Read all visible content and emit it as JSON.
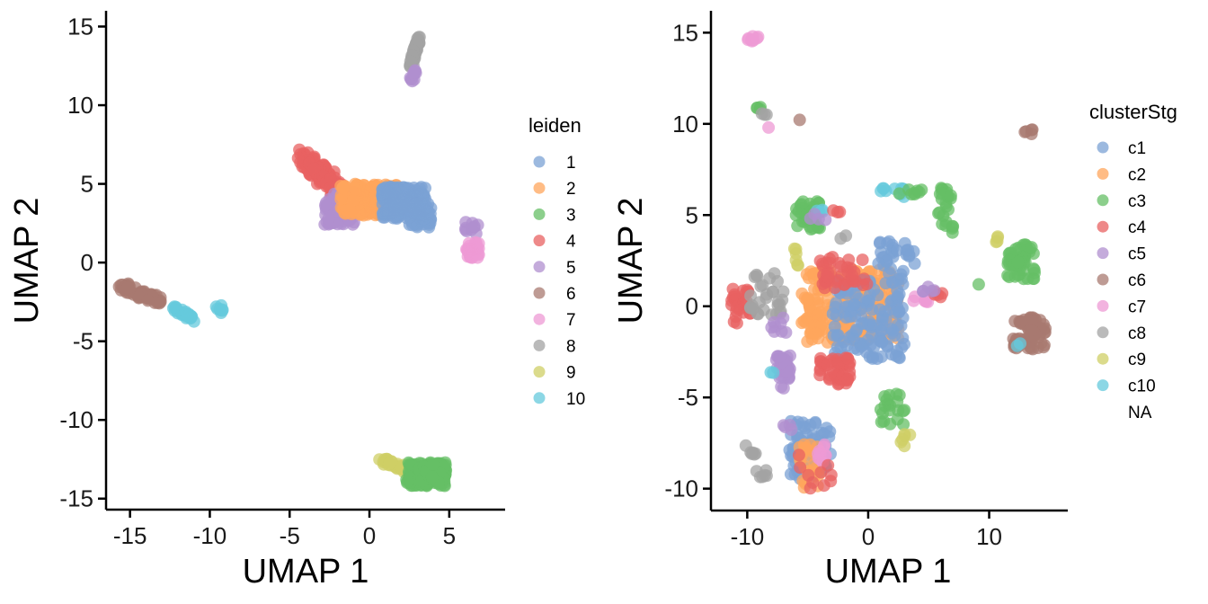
{
  "palette": {
    "1": "#7ba1d4",
    "2": "#ffa55c",
    "3": "#66bf66",
    "4": "#e86161",
    "5": "#b08fcf",
    "6": "#a87a70",
    "7": "#ee9ad4",
    "8": "#a3a3a3",
    "9": "#cfcf66",
    "10": "#66c9dc"
  },
  "chart_data": [
    {
      "type": "scatter",
      "xlabel": "UMAP 1",
      "ylabel": "UMAP 2",
      "xlim": [
        -16.5,
        8.5
      ],
      "ylim": [
        -15.7,
        16
      ],
      "x_ticks": [
        -15,
        -10,
        -5,
        0,
        5
      ],
      "y_ticks": [
        -15,
        -10,
        -5,
        0,
        5,
        10,
        15
      ],
      "grid": false,
      "legend": {
        "title": "leiden",
        "position": "right",
        "entries": [
          {
            "label": "1",
            "key": "1"
          },
          {
            "label": "2",
            "key": "2"
          },
          {
            "label": "3",
            "key": "3"
          },
          {
            "label": "4",
            "key": "4"
          },
          {
            "label": "5",
            "key": "5"
          },
          {
            "label": "6",
            "key": "6"
          },
          {
            "label": "7",
            "key": "7"
          },
          {
            "label": "8",
            "key": "8"
          },
          {
            "label": "9",
            "key": "9"
          },
          {
            "label": "10",
            "key": "10"
          }
        ]
      },
      "clusters": [
        {
          "key": "8",
          "x": [
            2.6,
            3.1
          ],
          "y": [
            12.5,
            14.3
          ],
          "n": 55,
          "shape": "line"
        },
        {
          "key": "5",
          "x": [
            2.5,
            3.0
          ],
          "y": [
            11.3,
            12.4
          ],
          "n": 10,
          "shape": "line"
        },
        {
          "key": "4",
          "x": [
            -4.0,
            -1.3
          ],
          "y": [
            6.7,
            3.8
          ],
          "n": 180,
          "shape": "band",
          "spread": 0.5
        },
        {
          "key": "5",
          "x": [
            -2.8,
            -0.8
          ],
          "y": [
            2.4,
            4.5
          ],
          "n": 70,
          "shape": "box"
        },
        {
          "key": "2",
          "x": [
            -1.8,
            1.8
          ],
          "y": [
            3.0,
            5.0
          ],
          "n": 180,
          "shape": "box"
        },
        {
          "key": "1",
          "x": [
            0.8,
            3.5
          ],
          "y": [
            2.8,
            4.8
          ],
          "n": 200,
          "shape": "box"
        },
        {
          "key": "1",
          "x": [
            2.5,
            3.9
          ],
          "y": [
            2.2,
            3.8
          ],
          "n": 50,
          "shape": "box"
        },
        {
          "key": "5",
          "x": [
            6.0,
            6.8
          ],
          "y": [
            1.8,
            2.6
          ],
          "n": 10,
          "shape": "box"
        },
        {
          "key": "7",
          "x": [
            6.0,
            6.9
          ],
          "y": [
            0.3,
            1.3
          ],
          "n": 30,
          "shape": "box"
        },
        {
          "key": "6",
          "x": [
            -15.5,
            -13.0
          ],
          "y": [
            -1.5,
            -2.5
          ],
          "n": 70,
          "shape": "band",
          "spread": 0.25
        },
        {
          "key": "10",
          "x": [
            -12.3,
            -11.0
          ],
          "y": [
            -2.9,
            -3.6
          ],
          "n": 30,
          "shape": "band",
          "spread": 0.15
        },
        {
          "key": "10",
          "x": [
            -9.6,
            -9.2
          ],
          "y": [
            -2.7,
            -3.2
          ],
          "n": 8,
          "shape": "box"
        },
        {
          "key": "9",
          "x": [
            0.8,
            2.5
          ],
          "y": [
            -12.6,
            -13.2
          ],
          "n": 35,
          "shape": "band",
          "spread": 0.2
        },
        {
          "key": "3",
          "x": [
            2.3,
            4.8
          ],
          "y": [
            -12.7,
            -14.2
          ],
          "n": 150,
          "shape": "box"
        }
      ]
    },
    {
      "type": "scatter",
      "xlabel": "UMAP 1",
      "ylabel": "UMAP 2",
      "xlim": [
        -13.0,
        16.5
      ],
      "ylim": [
        -11.2,
        16.2
      ],
      "x_ticks": [
        -10,
        0,
        10
      ],
      "y_ticks": [
        -10,
        -5,
        0,
        5,
        10,
        15
      ],
      "grid": false,
      "legend": {
        "title": "clusterStg",
        "position": "right",
        "entries": [
          {
            "label": "c1",
            "key": "1"
          },
          {
            "label": "c2",
            "key": "2"
          },
          {
            "label": "c3",
            "key": "3"
          },
          {
            "label": "c4",
            "key": "4"
          },
          {
            "label": "c5",
            "key": "5"
          },
          {
            "label": "c6",
            "key": "6"
          },
          {
            "label": "c7",
            "key": "7"
          },
          {
            "label": "c8",
            "key": "8"
          },
          {
            "label": "c9",
            "key": "9"
          },
          {
            "label": "c10",
            "key": "10"
          },
          {
            "label": "NA",
            "key": ""
          }
        ]
      },
      "clusters": [
        {
          "key": "7",
          "x": [
            -10.0,
            -9.0
          ],
          "y": [
            14.5,
            14.8
          ],
          "n": 8,
          "shape": "box"
        },
        {
          "key": "3",
          "x": [
            -9.3,
            -8.9
          ],
          "y": [
            10.7,
            11.1
          ],
          "n": 4,
          "shape": "box"
        },
        {
          "key": "8",
          "x": [
            -8.8,
            -8.4
          ],
          "y": [
            10.2,
            10.6
          ],
          "n": 3,
          "shape": "box"
        },
        {
          "key": "7",
          "x": [
            -8.4,
            -8.2
          ],
          "y": [
            9.7,
            9.9
          ],
          "n": 1,
          "shape": "box"
        },
        {
          "key": "6",
          "x": [
            -5.7,
            -5.6
          ],
          "y": [
            10.2,
            10.3
          ],
          "n": 1,
          "shape": "box"
        },
        {
          "key": "6",
          "x": [
            12.9,
            13.6
          ],
          "y": [
            9.2,
            9.7
          ],
          "n": 5,
          "shape": "box"
        },
        {
          "key": "3",
          "x": [
            -6.0,
            -4.0
          ],
          "y": [
            4.2,
            5.8
          ],
          "n": 40,
          "shape": "box"
        },
        {
          "key": "9",
          "x": [
            -6.2,
            -5.6
          ],
          "y": [
            2.0,
            3.5
          ],
          "n": 6,
          "shape": "box"
        },
        {
          "key": "10",
          "x": [
            -4.5,
            -3.0
          ],
          "y": [
            5.0,
            5.4
          ],
          "n": 4,
          "shape": "box"
        },
        {
          "key": "5",
          "x": [
            -4.8,
            -3.5
          ],
          "y": [
            4.7,
            5.1
          ],
          "n": 4,
          "shape": "box"
        },
        {
          "key": "4",
          "x": [
            -2.9,
            -2.3
          ],
          "y": [
            5.1,
            5.3
          ],
          "n": 3,
          "shape": "box"
        },
        {
          "key": "10",
          "x": [
            1.0,
            3.0
          ],
          "y": [
            6.0,
            6.5
          ],
          "n": 10,
          "shape": "box"
        },
        {
          "key": "3",
          "x": [
            2.5,
            4.5
          ],
          "y": [
            6.1,
            6.4
          ],
          "n": 8,
          "shape": "box"
        },
        {
          "key": "3",
          "x": [
            5.8,
            7.0
          ],
          "y": [
            4.0,
            6.5
          ],
          "n": 25,
          "shape": "box"
        },
        {
          "key": "9",
          "x": [
            10.2,
            10.8
          ],
          "y": [
            3.5,
            4.0
          ],
          "n": 4,
          "shape": "box"
        },
        {
          "key": "3",
          "x": [
            11.5,
            13.8
          ],
          "y": [
            1.5,
            3.4
          ],
          "n": 60,
          "shape": "box"
        },
        {
          "key": "3",
          "x": [
            9.1,
            9.3
          ],
          "y": [
            1.0,
            1.2
          ],
          "n": 1,
          "shape": "box"
        },
        {
          "key": "6",
          "x": [
            12.0,
            14.7
          ],
          "y": [
            -0.6,
            -2.4
          ],
          "n": 70,
          "shape": "box"
        },
        {
          "key": "10",
          "x": [
            12.2,
            12.6
          ],
          "y": [
            -1.9,
            -2.2
          ],
          "n": 2,
          "shape": "box"
        },
        {
          "key": "2",
          "x": [
            -5.5,
            2.5
          ],
          "y": [
            -2.0,
            2.0
          ],
          "n": 220,
          "shape": "box"
        },
        {
          "key": "1",
          "x": [
            -3.0,
            3.0
          ],
          "y": [
            -3.0,
            1.5
          ],
          "n": 130,
          "shape": "box"
        },
        {
          "key": "1",
          "x": [
            0.8,
            4.0
          ],
          "y": [
            1.5,
            3.8
          ],
          "n": 30,
          "shape": "box"
        },
        {
          "key": "4",
          "x": [
            -4.0,
            0.0
          ],
          "y": [
            1.0,
            2.7
          ],
          "n": 40,
          "shape": "box"
        },
        {
          "key": "4",
          "x": [
            -4.0,
            -1.5
          ],
          "y": [
            -2.8,
            -4.3
          ],
          "n": 50,
          "shape": "box"
        },
        {
          "key": "4",
          "x": [
            -11.3,
            -9.7
          ],
          "y": [
            -1.0,
            1.0
          ],
          "n": 30,
          "shape": "box"
        },
        {
          "key": "8",
          "x": [
            -9.8,
            -7.0
          ],
          "y": [
            -0.5,
            1.8
          ],
          "n": 30,
          "shape": "box"
        },
        {
          "key": "5",
          "x": [
            -7.6,
            -6.4
          ],
          "y": [
            -2.5,
            -4.5
          ],
          "n": 30,
          "shape": "box"
        },
        {
          "key": "5",
          "x": [
            -8.0,
            -6.8
          ],
          "y": [
            -0.5,
            -1.5
          ],
          "n": 8,
          "shape": "box"
        },
        {
          "key": "10",
          "x": [
            -8.2,
            -7.8
          ],
          "y": [
            -3.4,
            -3.7
          ],
          "n": 2,
          "shape": "box"
        },
        {
          "key": "7",
          "x": [
            3.5,
            5.0
          ],
          "y": [
            0.2,
            0.9
          ],
          "n": 10,
          "shape": "box"
        },
        {
          "key": "4",
          "x": [
            5.5,
            6.2
          ],
          "y": [
            0.3,
            1.0
          ],
          "n": 5,
          "shape": "box"
        },
        {
          "key": "5",
          "x": [
            3.8,
            5.5
          ],
          "y": [
            0.8,
            1.2
          ],
          "n": 5,
          "shape": "box"
        },
        {
          "key": "8",
          "x": [
            -2.5,
            -1.5
          ],
          "y": [
            3.5,
            4.0
          ],
          "n": 2,
          "shape": "box"
        },
        {
          "key": "3",
          "x": [
            1.0,
            3.0
          ],
          "y": [
            -4.8,
            -6.5
          ],
          "n": 20,
          "shape": "box"
        },
        {
          "key": "9",
          "x": [
            2.5,
            3.5
          ],
          "y": [
            -6.5,
            -8.3
          ],
          "n": 6,
          "shape": "box"
        },
        {
          "key": "1",
          "x": [
            -6.5,
            -3.0
          ],
          "y": [
            -6.3,
            -9.5
          ],
          "n": 70,
          "shape": "box"
        },
        {
          "key": "2",
          "x": [
            -5.8,
            -4.0
          ],
          "y": [
            -7.5,
            -10.0
          ],
          "n": 25,
          "shape": "box"
        },
        {
          "key": "7",
          "x": [
            -4.4,
            -3.4
          ],
          "y": [
            -7.5,
            -8.6
          ],
          "n": 10,
          "shape": "box"
        },
        {
          "key": "4",
          "x": [
            -5.8,
            -3.0
          ],
          "y": [
            -8.0,
            -10.2
          ],
          "n": 10,
          "shape": "box"
        },
        {
          "key": "5",
          "x": [
            -7.0,
            -6.0
          ],
          "y": [
            -6.3,
            -6.8
          ],
          "n": 4,
          "shape": "box"
        },
        {
          "key": "8",
          "x": [
            -10.4,
            -9.0
          ],
          "y": [
            -7.6,
            -8.3
          ],
          "n": 6,
          "shape": "band",
          "spread": 0.1
        },
        {
          "key": "8",
          "x": [
            -9.3,
            -8.4
          ],
          "y": [
            -9.0,
            -9.6
          ],
          "n": 6,
          "shape": "box"
        }
      ]
    }
  ]
}
